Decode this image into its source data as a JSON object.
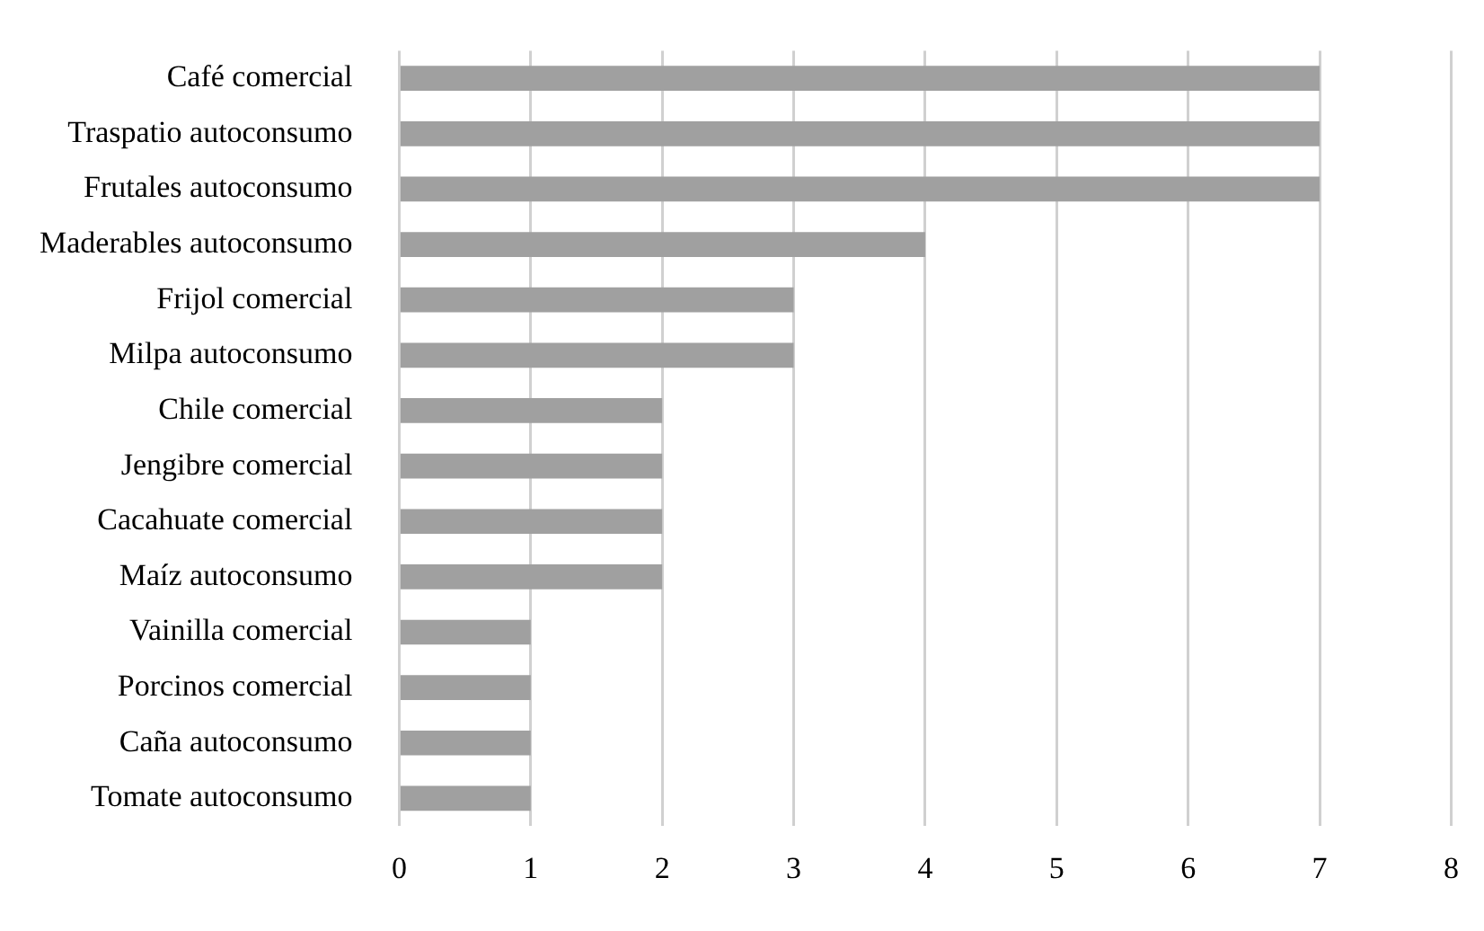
{
  "chart_data": {
    "type": "bar",
    "orientation": "horizontal",
    "categories": [
      "Café comercial",
      "Traspatio autoconsumo",
      "Frutales autoconsumo",
      "Maderables autoconsumo",
      "Frijol comercial",
      "Milpa autoconsumo",
      "Chile comercial",
      "Jengibre comercial",
      "Cacahuate comercial",
      "Maíz autoconsumo",
      "Vainilla comercial",
      "Porcinos comercial",
      "Caña autoconsumo",
      "Tomate autoconsumo"
    ],
    "values": [
      7,
      7,
      7,
      4,
      3,
      3,
      2,
      2,
      2,
      2,
      1,
      1,
      1,
      1
    ],
    "color": "#a0a0a0",
    "xlim": [
      0,
      8
    ],
    "xticks": [
      0,
      1,
      2,
      3,
      4,
      5,
      6,
      7,
      8
    ],
    "grid": "x",
    "legend": false
  }
}
